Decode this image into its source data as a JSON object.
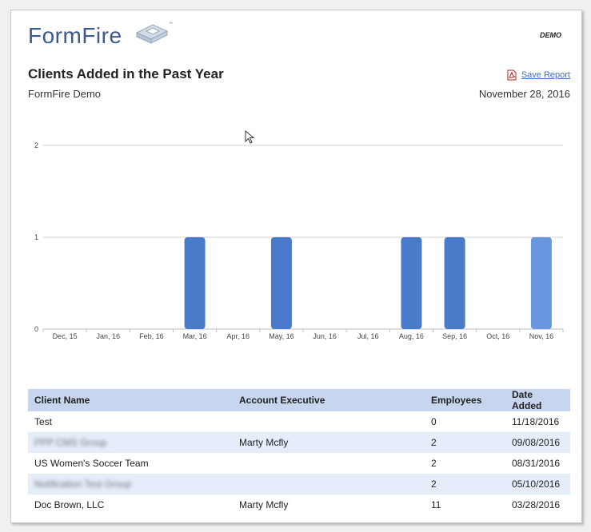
{
  "brand": {
    "name": "FormFire",
    "trademark": "™"
  },
  "header": {
    "demo_badge": "DEMO"
  },
  "report": {
    "title": "Clients Added in the Past Year",
    "subtitle": "FormFire Demo",
    "date": "November 28, 2016",
    "save_label": "Save Report",
    "save_icon": "pdf-icon"
  },
  "chart_data": {
    "type": "bar",
    "categories": [
      "Dec, 15",
      "Jan, 16",
      "Feb, 16",
      "Mar, 16",
      "Apr, 16",
      "May, 16",
      "Jun, 16",
      "Jul, 16",
      "Aug, 16",
      "Sep, 16",
      "Oct, 16",
      "Nov, 16"
    ],
    "values": [
      0,
      0,
      0,
      1,
      0,
      1,
      0,
      0,
      1,
      1,
      0,
      1
    ],
    "yticks": [
      0,
      1,
      2
    ],
    "ylim": [
      0,
      2
    ],
    "title": "",
    "xlabel": "",
    "ylabel": "",
    "grid": true,
    "bar_color": "#4a7bcb",
    "highlight_color": "#6897e0",
    "highlight_index": 11
  },
  "table": {
    "columns": [
      "Client Name",
      "Account Executive",
      "Employees",
      "Date Added"
    ],
    "rows": [
      {
        "client": "Test",
        "executive": "",
        "employees": "0",
        "date": "11/18/2016",
        "redacted": false
      },
      {
        "client": "PPP CMS Group",
        "executive": "Marty Mcfly",
        "employees": "2",
        "date": "09/08/2016",
        "redacted": true
      },
      {
        "client": "US Women's Soccer Team",
        "executive": "",
        "employees": "2",
        "date": "08/31/2016",
        "redacted": false
      },
      {
        "client": "Notification Test Group",
        "executive": "",
        "employees": "2",
        "date": "05/10/2016",
        "redacted": true
      },
      {
        "client": "Doc Brown, LLC",
        "executive": "Marty Mcfly",
        "employees": "11",
        "date": "03/28/2016",
        "redacted": false
      }
    ]
  },
  "colors": {
    "header_bg": "#c7d6ee",
    "alt_row_bg": "#e5ecfa",
    "link": "#3b6fc9",
    "brand": "#3d5a8a"
  }
}
